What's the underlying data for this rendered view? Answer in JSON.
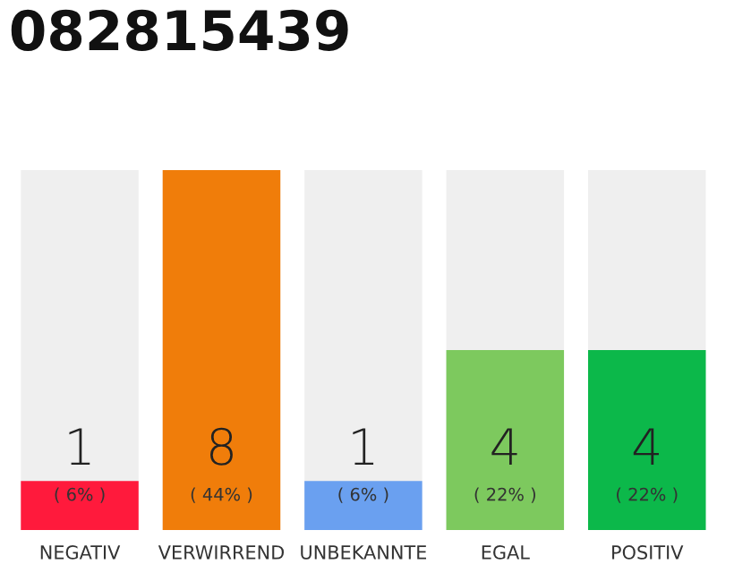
{
  "chart_data": {
    "type": "bar",
    "title": "082815439",
    "categories": [
      "NEGATIV",
      "VERWIRREND",
      "UNBEKANNTE",
      "EGAL",
      "POSITIV"
    ],
    "values": [
      6,
      44,
      6,
      22,
      22
    ],
    "colors": [
      "#ff1a3c",
      "#f07d0a",
      "#6aa0f0",
      "#7dc95e",
      "#0cb84a"
    ],
    "value_labels": [
      "( 6% )",
      "( 44% )",
      "( 6% )",
      "( 22% )",
      "( 22% )"
    ],
    "annotations": [
      "1",
      "8",
      "1",
      "4",
      "4"
    ]
  }
}
